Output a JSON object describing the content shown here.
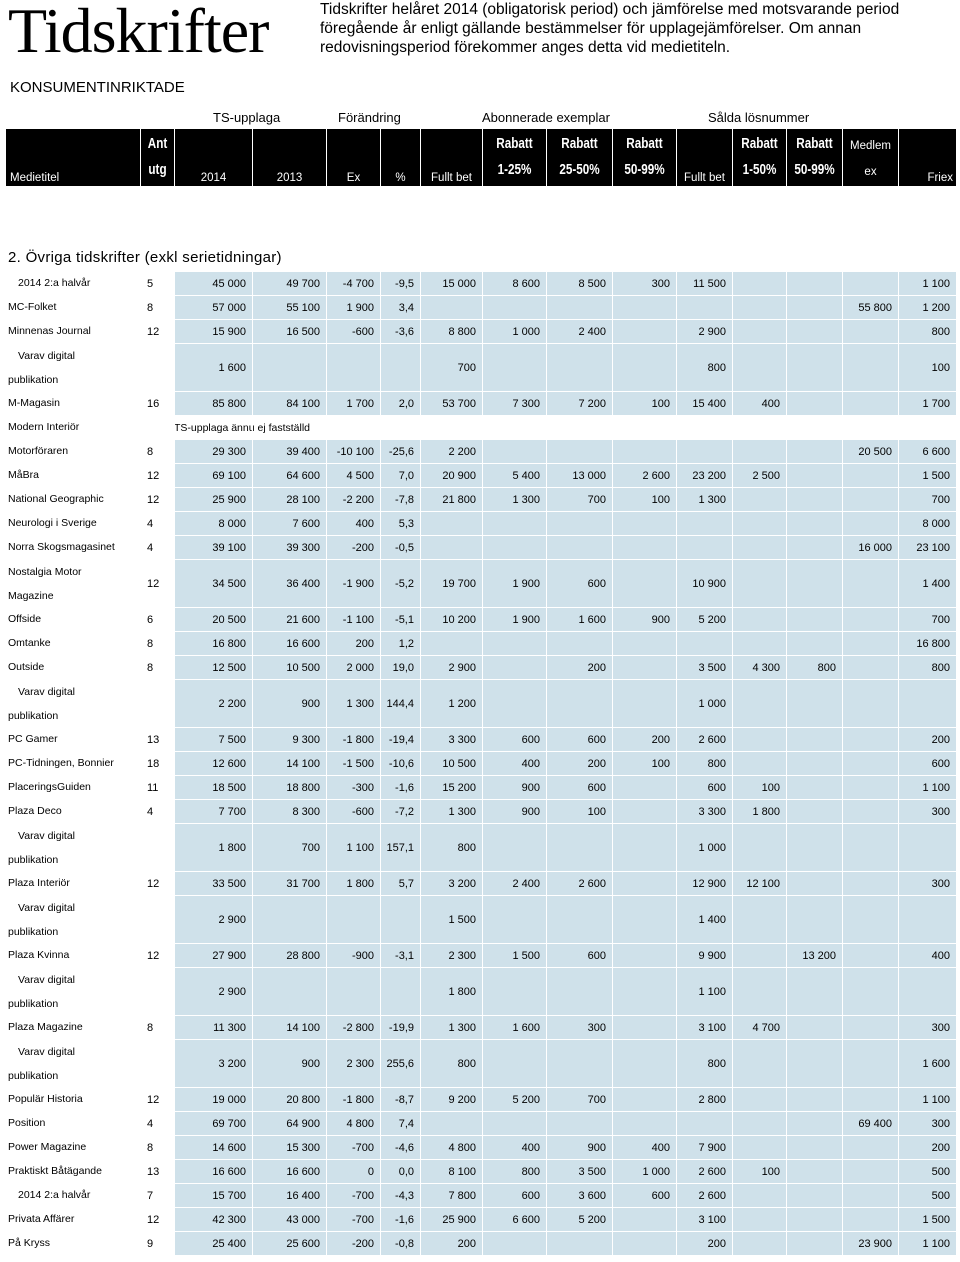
{
  "page": {
    "title": "Tidskrifter",
    "intro": "Tidskrifter helåret 2014 (obligatorisk period) och jämförelse med motsvarande period föregående år enligt gällande bestämmelser för upplagejämförelser. Om annan redovisningsperiod förekommer anges detta vid medietiteln.",
    "section": "KONSUMENTINRIKTADE",
    "subheading": "2. Övriga tidskrifter (exkl serietidningar)"
  },
  "header": {
    "groups": {
      "ts": "TS-upplaga",
      "change": "Förändring",
      "subscribed": "Abonnerade exemplar",
      "sold": "Sålda lösnummer"
    },
    "medietitel": "Medietitel",
    "ant": "Ant",
    "utg": "utg",
    "y2014": "2014",
    "y2013": "2013",
    "ex": "Ex",
    "pct": "%",
    "fullt1": "Fullt bet",
    "rabatt": "Rabatt",
    "r1_25": "1-25%",
    "r25_50": "25-50%",
    "r50_99": "50-99%",
    "fullt2": "Fullt bet",
    "r1_50": "1-50%",
    "r50_99b": "50-99%",
    "medlem": "Medlem",
    "medlem_ex": "ex",
    "friex": "Friex"
  },
  "rows": [
    {
      "n": [
        "2014 2:a halvår"
      ],
      "c": [
        "5",
        "45 000",
        "49 700",
        "-4 700",
        "-9,5",
        "15 000",
        "8 600",
        "8 500",
        "300",
        "11 500",
        "",
        "",
        "",
        "1 100"
      ]
    },
    {
      "n": [
        "MC-Folket"
      ],
      "c": [
        "8",
        "57 000",
        "55 100",
        "1 900",
        "3,4",
        "",
        "",
        "",
        "",
        "",
        "",
        "",
        "55 800",
        "1 200"
      ]
    },
    {
      "n": [
        "Minnenas Journal"
      ],
      "c": [
        "12",
        "15 900",
        "16 500",
        "-600",
        "-3,6",
        "8 800",
        "1 000",
        "2 400",
        "",
        "2 900",
        "",
        "",
        "",
        "800"
      ]
    },
    {
      "n": [
        "Varav digital",
        "publikation"
      ],
      "c": [
        "",
        "1 600",
        "",
        "",
        "",
        "700",
        "",
        "",
        "",
        "800",
        "",
        "",
        "",
        "100"
      ]
    },
    {
      "n": [
        "M-Magasin"
      ],
      "c": [
        "16",
        "85 800",
        "84 100",
        "1 700",
        "2,0",
        "53 700",
        "7 300",
        "7 200",
        "100",
        "15 400",
        "400",
        "",
        "",
        "1 700"
      ]
    },
    {
      "n": [
        "Modern Interiör"
      ],
      "note": "TS-upplaga ännu ej fastställd",
      "c": []
    },
    {
      "n": [
        "Motorföraren"
      ],
      "c": [
        "8",
        "29 300",
        "39 400",
        "-10 100",
        "-25,6",
        "2 200",
        "",
        "",
        "",
        "",
        "",
        "",
        "20 500",
        "6 600"
      ]
    },
    {
      "n": [
        "MåBra"
      ],
      "c": [
        "12",
        "69 100",
        "64 600",
        "4 500",
        "7,0",
        "20 900",
        "5 400",
        "13 000",
        "2 600",
        "23 200",
        "2 500",
        "",
        "",
        "1 500"
      ]
    },
    {
      "n": [
        "National Geographic"
      ],
      "c": [
        "12",
        "25 900",
        "28 100",
        "-2 200",
        "-7,8",
        "21 800",
        "1 300",
        "700",
        "100",
        "1 300",
        "",
        "",
        "",
        "700"
      ]
    },
    {
      "n": [
        "Neurologi i Sverige"
      ],
      "c": [
        "4",
        "8 000",
        "7 600",
        "400",
        "5,3",
        "",
        "",
        "",
        "",
        "",
        "",
        "",
        "",
        "8 000"
      ]
    },
    {
      "n": [
        "Norra Skogsmagasinet"
      ],
      "c": [
        "4",
        "39 100",
        "39 300",
        "-200",
        "-0,5",
        "",
        "",
        "",
        "",
        "",
        "",
        "",
        "16 000",
        "23 100"
      ]
    },
    {
      "n": [
        "Nostalgia Motor",
        "Magazine"
      ],
      "c": [
        "12",
        "34 500",
        "36 400",
        "-1 900",
        "-5,2",
        "19 700",
        "1 900",
        "600",
        "",
        "10 900",
        "",
        "",
        "",
        "1 400"
      ]
    },
    {
      "n": [
        "Offside"
      ],
      "c": [
        "6",
        "20 500",
        "21 600",
        "-1 100",
        "-5,1",
        "10 200",
        "1 900",
        "1 600",
        "900",
        "5 200",
        "",
        "",
        "",
        "700"
      ]
    },
    {
      "n": [
        "Omtanke"
      ],
      "c": [
        "8",
        "16 800",
        "16 600",
        "200",
        "1,2",
        "",
        "",
        "",
        "",
        "",
        "",
        "",
        "",
        "16 800"
      ]
    },
    {
      "n": [
        "Outside"
      ],
      "c": [
        "8",
        "12 500",
        "10 500",
        "2 000",
        "19,0",
        "2 900",
        "",
        "200",
        "",
        "3 500",
        "4 300",
        "800",
        "",
        "800"
      ]
    },
    {
      "n": [
        "Varav digital",
        "publikation"
      ],
      "c": [
        "",
        "2 200",
        "900",
        "1 300",
        "144,4",
        "1 200",
        "",
        "",
        "",
        "1 000",
        "",
        "",
        "",
        ""
      ]
    },
    {
      "n": [
        "PC Gamer"
      ],
      "c": [
        "13",
        "7 500",
        "9 300",
        "-1 800",
        "-19,4",
        "3 300",
        "600",
        "600",
        "200",
        "2 600",
        "",
        "",
        "",
        "200"
      ]
    },
    {
      "n": [
        "PC-Tidningen, Bonnier"
      ],
      "c": [
        "18",
        "12 600",
        "14 100",
        "-1 500",
        "-10,6",
        "10 500",
        "400",
        "200",
        "100",
        "800",
        "",
        "",
        "",
        "600"
      ]
    },
    {
      "n": [
        "PlaceringsGuiden"
      ],
      "c": [
        "11",
        "18 500",
        "18 800",
        "-300",
        "-1,6",
        "15 200",
        "900",
        "600",
        "",
        "600",
        "100",
        "",
        "",
        "1 100"
      ]
    },
    {
      "n": [
        "Plaza Deco"
      ],
      "c": [
        "4",
        "7 700",
        "8 300",
        "-600",
        "-7,2",
        "1 300",
        "900",
        "100",
        "",
        "3 300",
        "1 800",
        "",
        "",
        "300"
      ]
    },
    {
      "n": [
        "Varav digital",
        "publikation"
      ],
      "c": [
        "",
        "1 800",
        "700",
        "1 100",
        "157,1",
        "800",
        "",
        "",
        "",
        "1 000",
        "",
        "",
        "",
        ""
      ]
    },
    {
      "n": [
        "Plaza Interiör"
      ],
      "c": [
        "12",
        "33 500",
        "31 700",
        "1 800",
        "5,7",
        "3 200",
        "2 400",
        "2 600",
        "",
        "12 900",
        "12 100",
        "",
        "",
        "300"
      ]
    },
    {
      "n": [
        "Varav digital",
        "publikation"
      ],
      "c": [
        "",
        "2 900",
        "",
        "",
        "",
        "1 500",
        "",
        "",
        "",
        "1 400",
        "",
        "",
        "",
        ""
      ]
    },
    {
      "n": [
        "Plaza Kvinna"
      ],
      "c": [
        "12",
        "27 900",
        "28 800",
        "-900",
        "-3,1",
        "2 300",
        "1 500",
        "600",
        "",
        "9 900",
        "",
        "13 200",
        "",
        "400"
      ]
    },
    {
      "n": [
        "Varav digital",
        "publikation"
      ],
      "c": [
        "",
        "2 900",
        "",
        "",
        "",
        "1 800",
        "",
        "",
        "",
        "1 100",
        "",
        "",
        "",
        ""
      ]
    },
    {
      "n": [
        "Plaza Magazine"
      ],
      "c": [
        "8",
        "11 300",
        "14 100",
        "-2 800",
        "-19,9",
        "1 300",
        "1 600",
        "300",
        "",
        "3 100",
        "4 700",
        "",
        "",
        "300"
      ]
    },
    {
      "n": [
        "Varav digital",
        "publikation"
      ],
      "c": [
        "",
        "3 200",
        "900",
        "2 300",
        "255,6",
        "800",
        "",
        "",
        "",
        "800",
        "",
        "",
        "",
        "1 600"
      ]
    },
    {
      "n": [
        "Populär Historia"
      ],
      "c": [
        "12",
        "19 000",
        "20 800",
        "-1 800",
        "-8,7",
        "9 200",
        "5 200",
        "700",
        "",
        "2 800",
        "",
        "",
        "",
        "1 100"
      ]
    },
    {
      "n": [
        "Position"
      ],
      "c": [
        "4",
        "69 700",
        "64 900",
        "4 800",
        "7,4",
        "",
        "",
        "",
        "",
        "",
        "",
        "",
        "69 400",
        "300"
      ]
    },
    {
      "n": [
        "Power Magazine"
      ],
      "c": [
        "8",
        "14 600",
        "15 300",
        "-700",
        "-4,6",
        "4 800",
        "400",
        "900",
        "400",
        "7 900",
        "",
        "",
        "",
        "200"
      ]
    },
    {
      "n": [
        "Praktiskt Båtägande"
      ],
      "c": [
        "13",
        "16 600",
        "16 600",
        "0",
        "0,0",
        "8 100",
        "800",
        "3 500",
        "1 000",
        "2 600",
        "100",
        "",
        "",
        "500"
      ]
    },
    {
      "n": [
        "2014 2:a halvår"
      ],
      "c": [
        "7",
        "15 700",
        "16 400",
        "-700",
        "-4,3",
        "7 800",
        "600",
        "3 600",
        "600",
        "2 600",
        "",
        "",
        "",
        "500"
      ]
    },
    {
      "n": [
        "Privata Affärer"
      ],
      "c": [
        "12",
        "42 300",
        "43 000",
        "-700",
        "-1,6",
        "25 900",
        "6 600",
        "5 200",
        "",
        "3 100",
        "",
        "",
        "",
        "1 500"
      ]
    },
    {
      "n": [
        "På Kryss"
      ],
      "c": [
        "9",
        "25 400",
        "25 600",
        "-200",
        "-0,8",
        "200",
        "",
        "",
        "",
        "200",
        "",
        "",
        "23 900",
        "1 100"
      ]
    }
  ]
}
